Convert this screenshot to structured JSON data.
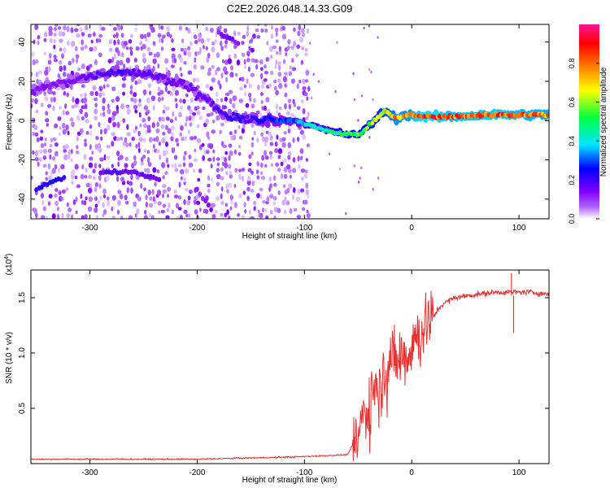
{
  "title": "C2E2.2026.048.14.33.G09",
  "chart_data": [
    {
      "type": "heatmap",
      "name": "spectrogram",
      "xlabel": "Height of straight line (km)",
      "ylabel": "Frequency (Hz)",
      "xlim": [
        -355,
        128
      ],
      "ylim": [
        -50,
        49
      ],
      "x_ticks": [
        -300,
        -200,
        -100,
        0,
        100
      ],
      "x_tick_labels": [
        "-300",
        "-200",
        "-100",
        "0",
        "100"
      ],
      "y_ticks": [
        -40,
        -20,
        0,
        20,
        40
      ],
      "y_tick_labels": [
        "-40",
        "-20",
        "0",
        "20",
        "40"
      ],
      "colorbar": {
        "label": "Normalized spectral amplitude",
        "range": [
          0,
          1
        ],
        "ticks": [
          0.0,
          0.2,
          0.4,
          0.6,
          0.8
        ],
        "tick_labels": [
          "0.0",
          "0.2",
          "0.4",
          "0.6",
          "0.8"
        ],
        "colormap": [
          "#ffffff",
          "#7f00ff",
          "#0000ff",
          "#00e5ff",
          "#00ff40",
          "#ffff00",
          "#ff8000",
          "#ff0000",
          "#ff1493"
        ]
      },
      "main_trace": [
        {
          "x": -355,
          "y": 15,
          "amp": 0.12
        },
        {
          "x": -320,
          "y": 20,
          "amp": 0.14
        },
        {
          "x": -290,
          "y": 24,
          "amp": 0.18
        },
        {
          "x": -270,
          "y": 25,
          "amp": 0.2
        },
        {
          "x": -240,
          "y": 23,
          "amp": 0.16
        },
        {
          "x": -210,
          "y": 18,
          "amp": 0.15
        },
        {
          "x": -185,
          "y": 8,
          "amp": 0.16
        },
        {
          "x": -170,
          "y": 1,
          "amp": 0.22
        },
        {
          "x": -150,
          "y": 1,
          "amp": 0.2
        },
        {
          "x": -130,
          "y": 0,
          "amp": 0.28
        },
        {
          "x": -110,
          "y": 0,
          "amp": 0.3
        },
        {
          "x": -95,
          "y": -2,
          "amp": 0.4
        },
        {
          "x": -80,
          "y": -5,
          "amp": 0.45
        },
        {
          "x": -60,
          "y": -7,
          "amp": 0.5
        },
        {
          "x": -48,
          "y": -7,
          "amp": 0.55
        },
        {
          "x": -35,
          "y": 0,
          "amp": 0.6
        },
        {
          "x": -25,
          "y": 5,
          "amp": 0.65
        },
        {
          "x": -15,
          "y": 1,
          "amp": 0.75
        },
        {
          "x": -5,
          "y": 3,
          "amp": 0.75
        },
        {
          "x": 10,
          "y": 2,
          "amp": 0.85
        },
        {
          "x": 40,
          "y": 2,
          "amp": 0.8
        },
        {
          "x": 70,
          "y": 3,
          "amp": 0.82
        },
        {
          "x": 95,
          "y": 3,
          "amp": 0.8
        },
        {
          "x": 128,
          "y": 3,
          "amp": 0.78
        }
      ],
      "secondary_traces": [
        {
          "points": [
            {
              "x": -350,
              "y": -35
            },
            {
              "x": -335,
              "y": -31
            },
            {
              "x": -322,
              "y": -29
            }
          ],
          "amp": 0.22
        },
        {
          "points": [
            {
              "x": -290,
              "y": -26
            },
            {
              "x": -260,
              "y": -26
            },
            {
              "x": -235,
              "y": -30
            }
          ],
          "amp": 0.16
        },
        {
          "points": [
            {
              "x": -180,
              "y": 45
            },
            {
              "x": -160,
              "y": 39
            }
          ],
          "amp": 0.14
        },
        {
          "points": [
            {
              "x": -200,
              "y": -35
            },
            {
              "x": -185,
              "y": -47
            }
          ],
          "amp": 0.12
        }
      ]
    },
    {
      "type": "line",
      "name": "snr",
      "xlabel": "Height of straight line (km)",
      "ylabel": "SNR (10 * v/v)",
      "y_multiplier": "(x10",
      "y_multiplier_exp": "4",
      "y_multiplier_close": ")",
      "xlim": [
        -355,
        128
      ],
      "ylim": [
        0,
        1.75
      ],
      "x_ticks": [
        -300,
        -200,
        -100,
        0,
        100
      ],
      "x_tick_labels": [
        "-300",
        "-200",
        "-100",
        "0",
        "100"
      ],
      "y_ticks": [
        0.5,
        1.0,
        1.5
      ],
      "y_tick_labels": [
        "0.5",
        "1.0",
        "1.5"
      ],
      "color": "#e83232",
      "series": [
        {
          "name": "SNR",
          "points": [
            {
              "x": -355,
              "y": 0.04
            },
            {
              "x": -200,
              "y": 0.04
            },
            {
              "x": -110,
              "y": 0.06
            },
            {
              "x": -60,
              "y": 0.08
            },
            {
              "x": -50,
              "y": 0.25
            },
            {
              "x": -45,
              "y": 0.45
            },
            {
              "x": -40,
              "y": 0.5
            },
            {
              "x": -35,
              "y": 0.75
            },
            {
              "x": -30,
              "y": 0.7
            },
            {
              "x": -25,
              "y": 0.85
            },
            {
              "x": -20,
              "y": 0.95
            },
            {
              "x": -15,
              "y": 0.9
            },
            {
              "x": -10,
              "y": 1.0
            },
            {
              "x": -5,
              "y": 0.95
            },
            {
              "x": 0,
              "y": 1.1
            },
            {
              "x": 5,
              "y": 1.15
            },
            {
              "x": 10,
              "y": 1.2
            },
            {
              "x": 15,
              "y": 1.3
            },
            {
              "x": 20,
              "y": 1.32
            },
            {
              "x": 25,
              "y": 1.4
            },
            {
              "x": 30,
              "y": 1.45
            },
            {
              "x": 40,
              "y": 1.5
            },
            {
              "x": 60,
              "y": 1.53
            },
            {
              "x": 80,
              "y": 1.55
            },
            {
              "x": 95,
              "y": 1.55
            },
            {
              "x": 110,
              "y": 1.55
            },
            {
              "x": 128,
              "y": 1.53
            }
          ]
        }
      ],
      "annotations": [
        {
          "x": 93,
          "y": 1.72,
          "note": "spike"
        },
        {
          "x": 95,
          "y": 1.18,
          "note": "dip"
        }
      ]
    }
  ]
}
